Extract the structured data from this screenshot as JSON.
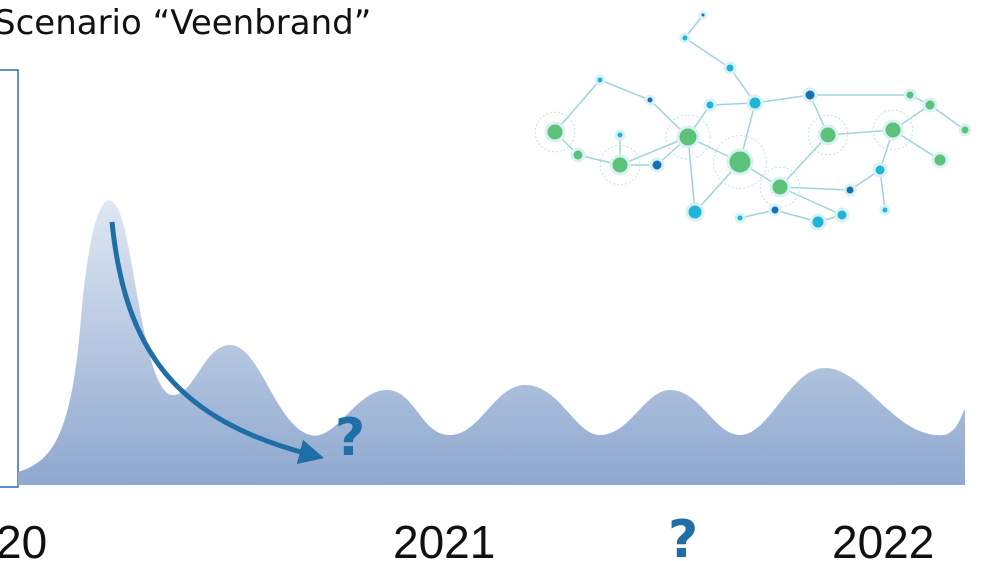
{
  "slide": {
    "title": "Scenario “Veenbrand”",
    "timeline_labels": [
      "20",
      "2021",
      "2022"
    ],
    "question_marks": [
      "?",
      "?"
    ]
  }
}
